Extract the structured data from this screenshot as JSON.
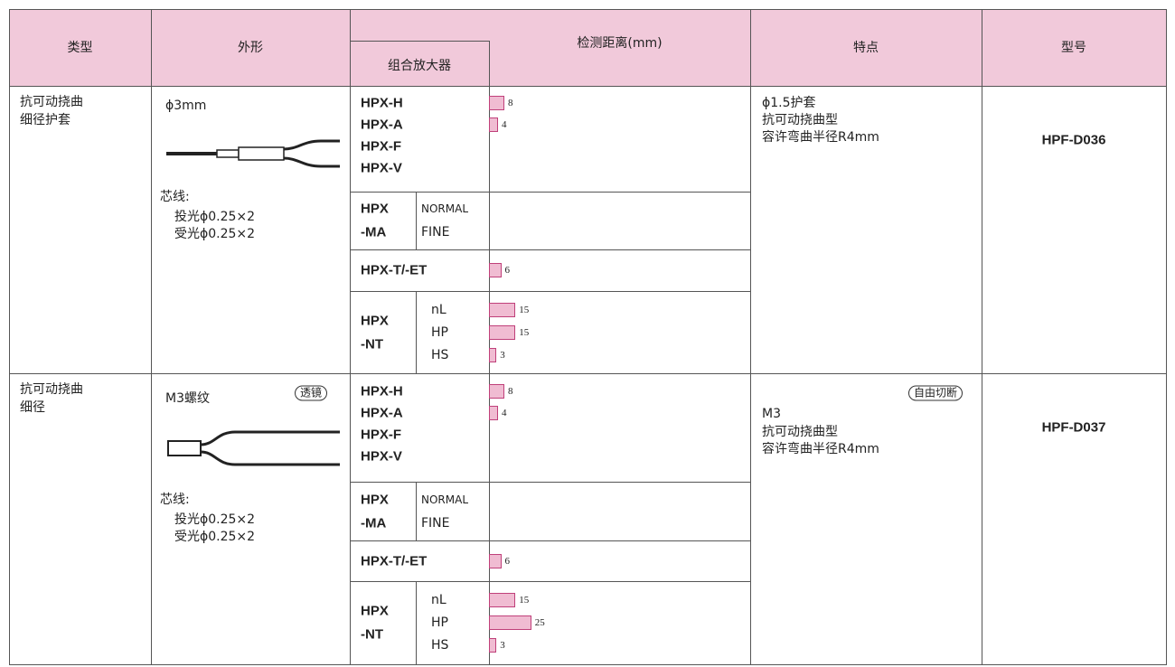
{
  "header": {
    "type": "类型",
    "shape": "外形",
    "distance": "检测距离(mm)",
    "amplifier": "组合放大器",
    "features": "特点",
    "model": "型号"
  },
  "rows": [
    {
      "type": [
        "抗可动挠曲",
        "细径护套"
      ],
      "shape_title": "ϕ3mm",
      "core_label": "芯线:",
      "core_lines": [
        "投光ϕ0.25×2",
        "受光ϕ0.25×2"
      ],
      "groups": [
        {
          "items": [
            {
              "label": "HPX-H",
              "value": 8
            },
            {
              "label": "HPX-A",
              "value": 4
            },
            {
              "label": "HPX-F"
            },
            {
              "label": "HPX-V"
            }
          ]
        },
        {
          "name": [
            "HPX",
            "-MA"
          ],
          "items": [
            {
              "label": "NORMAL"
            },
            {
              "label": "FINE"
            }
          ]
        },
        {
          "name": [
            "HPX-T/-ET"
          ],
          "value": 6
        },
        {
          "name": [
            "HPX",
            "-NT"
          ],
          "items": [
            {
              "label": "nL",
              "value": 15
            },
            {
              "label": "HP",
              "value": 15
            },
            {
              "label": "HS",
              "value": 3
            }
          ]
        }
      ],
      "features": [
        "ϕ1.5护套",
        "抗可动挠曲型",
        "容许弯曲半径R4mm"
      ],
      "model": "HPF-D036"
    },
    {
      "type": [
        "抗可动挠曲",
        "细径"
      ],
      "shape_title": "M3螺纹",
      "shape_tag": "透镜",
      "core_label": "芯线:",
      "core_lines": [
        "投光ϕ0.25×2",
        "受光ϕ0.25×2"
      ],
      "groups": [
        {
          "items": [
            {
              "label": "HPX-H",
              "value": 8
            },
            {
              "label": "HPX-A",
              "value": 4
            },
            {
              "label": "HPX-F"
            },
            {
              "label": "HPX-V"
            }
          ]
        },
        {
          "name": [
            "HPX",
            "-MA"
          ],
          "items": [
            {
              "label": "NORMAL"
            },
            {
              "label": "FINE"
            }
          ]
        },
        {
          "name": [
            "HPX-T/-ET"
          ],
          "value": 6
        },
        {
          "name": [
            "HPX",
            "-NT"
          ],
          "items": [
            {
              "label": "nL",
              "value": 15
            },
            {
              "label": "HP",
              "value": 25
            },
            {
              "label": "HS",
              "value": 3
            }
          ]
        }
      ],
      "features_tag": "自由切断",
      "features": [
        "M3",
        "抗可动挠曲型",
        "容许弯曲半径R4mm"
      ],
      "model": "HPF-D037"
    }
  ]
}
